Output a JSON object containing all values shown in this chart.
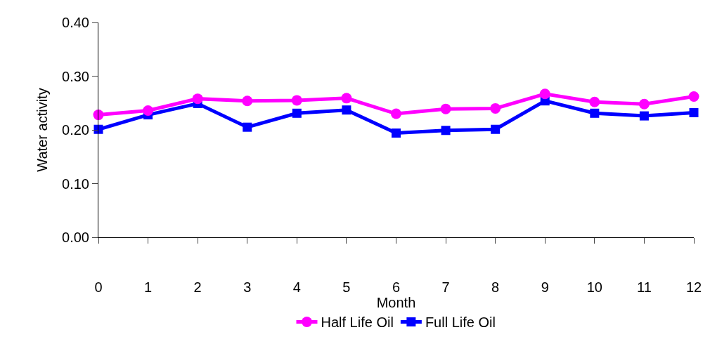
{
  "chart_data": {
    "type": "line",
    "ylabel": "Water activity",
    "xlabel": "Month",
    "x": [
      0,
      1,
      2,
      3,
      4,
      5,
      6,
      7,
      8,
      9,
      10,
      11,
      12
    ],
    "xlim": [
      0,
      12
    ],
    "xticks": [
      0,
      1,
      2,
      3,
      4,
      5,
      6,
      7,
      8,
      9,
      10,
      11,
      12
    ],
    "series": [
      {
        "name": "Half Life Oil",
        "color": "#ff00ff",
        "marker": "circle",
        "values": [
          0.228,
          0.236,
          0.258,
          0.254,
          0.255,
          0.259,
          0.23,
          0.239,
          0.24,
          0.267,
          0.252,
          0.248,
          0.262
        ]
      },
      {
        "name": "Full Life Oil",
        "color": "#0000ff",
        "marker": "square",
        "values": [
          0.201,
          0.228,
          0.249,
          0.205,
          0.231,
          0.237,
          0.194,
          0.199,
          0.201,
          0.254,
          0.231,
          0.226,
          0.232
        ]
      }
    ],
    "ylim": [
      0,
      0.4
    ],
    "yticks": [
      {
        "value": 0,
        "label": "0.00"
      },
      {
        "value": 0.1,
        "label": "0.10"
      },
      {
        "value": 0.2,
        "label": "0.20"
      },
      {
        "value": 0.3,
        "label": "0.30"
      },
      {
        "value": 0.4,
        "label": "0.40"
      }
    ],
    "legend": "bottom"
  }
}
